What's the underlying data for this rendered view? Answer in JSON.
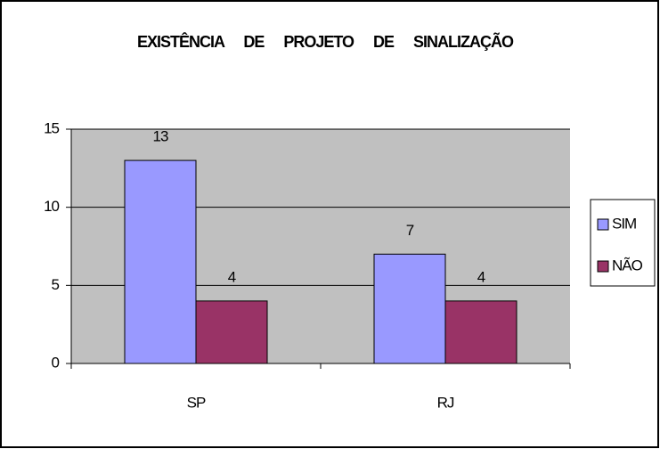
{
  "chart_data": {
    "type": "bar",
    "title": "EXISTÊNCIA DE PROJETO DE SINALIZAÇÃO",
    "categories": [
      "SP",
      "RJ"
    ],
    "series": [
      {
        "name": "SIM",
        "color": "#9999ff",
        "values": [
          13,
          7
        ]
      },
      {
        "name": "NÃO",
        "color": "#993366",
        "values": [
          4,
          4
        ]
      }
    ],
    "ylim": [
      0,
      15
    ],
    "yticks": [
      0,
      5,
      10,
      15
    ],
    "grid": true,
    "legend": "right"
  }
}
